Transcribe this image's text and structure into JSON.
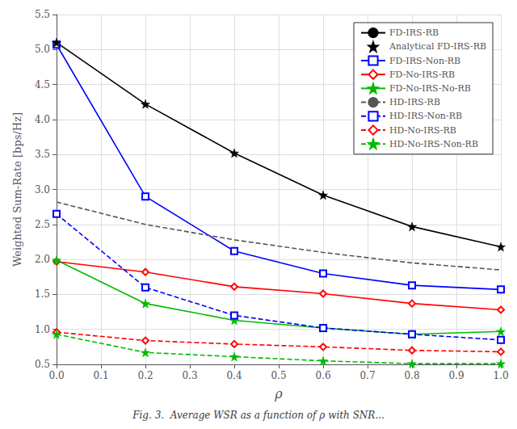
{
  "chart_data": {
    "type": "line",
    "xlabel": "ρ",
    "ylabel": "Weighted Sum-Rate [bps/Hz]",
    "caption": "Fig. 3.  Average WSR as a function of ρ with SNR...",
    "x": [
      0.0,
      0.2,
      0.4,
      0.6,
      0.8,
      1.0
    ],
    "series": [
      {
        "name": "FD-IRS-RB",
        "color": "#000000",
        "line_style": "solid",
        "marker": "none",
        "values": [
          5.1,
          4.22,
          3.52,
          2.92,
          2.47,
          2.18
        ]
      },
      {
        "name": "Analytical FD-IRS-RB",
        "color": "#000000",
        "line_style": "none",
        "marker": "star",
        "values": [
          5.1,
          4.22,
          3.52,
          2.92,
          2.47,
          2.18
        ]
      },
      {
        "name": "FD-IRS-Non-RB",
        "color": "#0000FF",
        "line_style": "solid",
        "marker": "square",
        "values": [
          5.07,
          2.9,
          2.12,
          1.8,
          1.63,
          1.57
        ]
      },
      {
        "name": "FD-No-IRS-RB",
        "color": "#FF0000",
        "line_style": "solid",
        "marker": "diamond",
        "values": [
          1.97,
          1.82,
          1.61,
          1.51,
          1.37,
          1.28
        ]
      },
      {
        "name": "FD-No-IRS-No-RB",
        "color": "#00BB00",
        "line_style": "solid",
        "marker": "star",
        "values": [
          1.99,
          1.37,
          1.13,
          1.02,
          0.93,
          0.97
        ]
      },
      {
        "name": "HD-IRS-RB",
        "color": "#555555",
        "line_style": "dashed",
        "marker": "none",
        "values": [
          2.82,
          2.5,
          2.28,
          2.1,
          1.95,
          1.85
        ]
      },
      {
        "name": "HD-IRS-Non-RB",
        "color": "#0000FF",
        "line_style": "dashed",
        "marker": "square",
        "values": [
          2.65,
          1.6,
          1.2,
          1.02,
          0.93,
          0.85
        ]
      },
      {
        "name": "HD-No-IRS-RB",
        "color": "#FF0000",
        "line_style": "dashed",
        "marker": "diamond",
        "values": [
          0.96,
          0.84,
          0.79,
          0.75,
          0.7,
          0.68
        ]
      },
      {
        "name": "HD-No-IRS-Non-RB",
        "color": "#00BB00",
        "line_style": "dashed",
        "marker": "star",
        "values": [
          0.93,
          0.67,
          0.61,
          0.55,
          0.51,
          0.51
        ]
      }
    ],
    "xlim": [
      0.0,
      1.0
    ],
    "ylim": [
      0.5,
      5.5
    ],
    "xticks": [
      {
        "value": 0.0,
        "label": "0.0"
      },
      0.1,
      0.2,
      0.3,
      0.4,
      0.5,
      0.6,
      0.7,
      0.8,
      0.9,
      {
        "value": 1.0,
        "label": "1.0"
      }
    ],
    "yticks": [
      0.5,
      {
        "value": 1.0,
        "label": "1.0"
      },
      1.5,
      {
        "value": 2.0,
        "label": "2.0"
      },
      2.5,
      {
        "value": 3.0,
        "label": "3.0"
      },
      3.5,
      {
        "value": 4.0,
        "label": "4.0"
      },
      4.5,
      {
        "value": 5.0,
        "label": "5.0"
      },
      5.5
    ],
    "grid": true,
    "legend": "upper right"
  }
}
